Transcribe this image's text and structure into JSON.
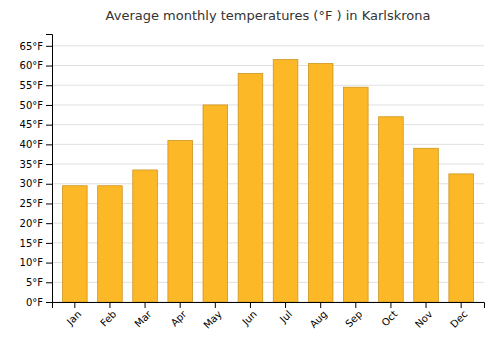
{
  "chart_data": {
    "type": "bar",
    "title": "Average monthly temperatures (°F ) in Karlskrona",
    "categories": [
      "Jan",
      "Feb",
      "Mar",
      "Apr",
      "May",
      "Jun",
      "Jul",
      "Aug",
      "Sep",
      "Oct",
      "Nov",
      "Dec"
    ],
    "values": [
      29.5,
      29.5,
      33.5,
      41.0,
      50.0,
      58.0,
      61.5,
      60.5,
      54.5,
      47.0,
      39.0,
      32.5
    ],
    "color": "#FDB827",
    "ylim": [
      0,
      68
    ],
    "yticks": [
      {
        "value": 0,
        "label": "0°F"
      },
      {
        "value": 5,
        "label": "5°F"
      },
      {
        "value": 10,
        "label": "10°F"
      },
      {
        "value": 15,
        "label": "15°F"
      },
      {
        "value": 20,
        "label": "20°F"
      },
      {
        "value": 25,
        "label": "25°F"
      },
      {
        "value": 30,
        "label": "30°F"
      },
      {
        "value": 35,
        "label": "35°F"
      },
      {
        "value": 40,
        "label": "40°F"
      },
      {
        "value": 45,
        "label": "45°F"
      },
      {
        "value": 50,
        "label": "50°F"
      },
      {
        "value": 55,
        "label": "55°F"
      },
      {
        "value": 60,
        "label": "60°F"
      },
      {
        "value": 65,
        "label": "65°F"
      }
    ],
    "grid": true
  }
}
